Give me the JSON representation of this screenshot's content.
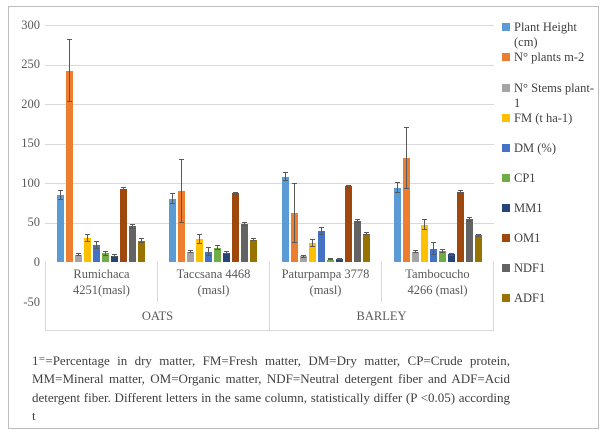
{
  "figure": {
    "footnote": "1⁼=Percentage in dry matter, FM=Fresh matter, DM=Dry matter, CP=Crude protein, MM=Mineral matter, OM=Organic matter, NDF=Neutral detergent fiber and ADF=Acid detergent fiber. Different letters in the same column, statistically differ (P <0.05) according t"
  },
  "chart_data": {
    "type": "bar",
    "title": "",
    "ylim": [
      -50,
      300
    ],
    "y_ticks": [
      300,
      250,
      200,
      150,
      100,
      50,
      0,
      -50
    ],
    "grid": "horizontal",
    "legend_position": "right",
    "error_bars": true,
    "error_bar_color": "#595959",
    "categories": [
      "Rumichaca 4251(masl)",
      "Taccsana 4468 (masl)",
      "Paturpampa 3778 (masl)",
      "Tambocucho 4266 (masl)"
    ],
    "super_categories": [
      {
        "label": "OATS",
        "span": 2
      },
      {
        "label": "BARLEY",
        "span": 2
      }
    ],
    "series": [
      {
        "name": "Plant Height (cm)",
        "color": "#5B9BD5",
        "values": [
          85,
          80,
          108,
          94
        ],
        "errors": [
          6,
          7,
          6,
          7
        ]
      },
      {
        "name": "N° plants m-2",
        "color": "#ED7D31",
        "values": [
          242,
          90,
          62,
          132
        ],
        "errors": [
          40,
          40,
          38,
          39
        ]
      },
      {
        "name": "N°  Stems plant-1",
        "color": "#A5A5A5",
        "values": [
          9,
          13,
          7,
          13
        ],
        "errors": [
          2,
          2,
          2,
          2
        ]
      },
      {
        "name": "FM (t ha-1)",
        "color": "#FFC000",
        "values": [
          30,
          29,
          24,
          47
        ],
        "errors": [
          5,
          6,
          5,
          7
        ]
      },
      {
        "name": "DM (%)",
        "color": "#4472C4",
        "values": [
          21,
          13,
          39,
          17
        ],
        "errors": [
          5,
          6,
          5,
          8
        ]
      },
      {
        "name": "CP1",
        "color": "#70AD47",
        "values": [
          11,
          18,
          3,
          14
        ],
        "errors": [
          3,
          3,
          1,
          3
        ]
      },
      {
        "name": "MM1",
        "color": "#264478",
        "values": [
          8,
          12,
          4,
          10
        ],
        "errors": [
          2,
          2,
          1,
          2
        ]
      },
      {
        "name": "OM1",
        "color": "#9E480E",
        "values": [
          93,
          87,
          96,
          89
        ],
        "errors": [
          2,
          2,
          2,
          2
        ]
      },
      {
        "name": "NDF1",
        "color": "#636363",
        "values": [
          45,
          48,
          52,
          54
        ],
        "errors": [
          3,
          3,
          2,
          3
        ]
      },
      {
        "name": "ADF1",
        "color": "#997300",
        "values": [
          27,
          28,
          36,
          34
        ],
        "errors": [
          3,
          2,
          2,
          2
        ]
      }
    ]
  }
}
